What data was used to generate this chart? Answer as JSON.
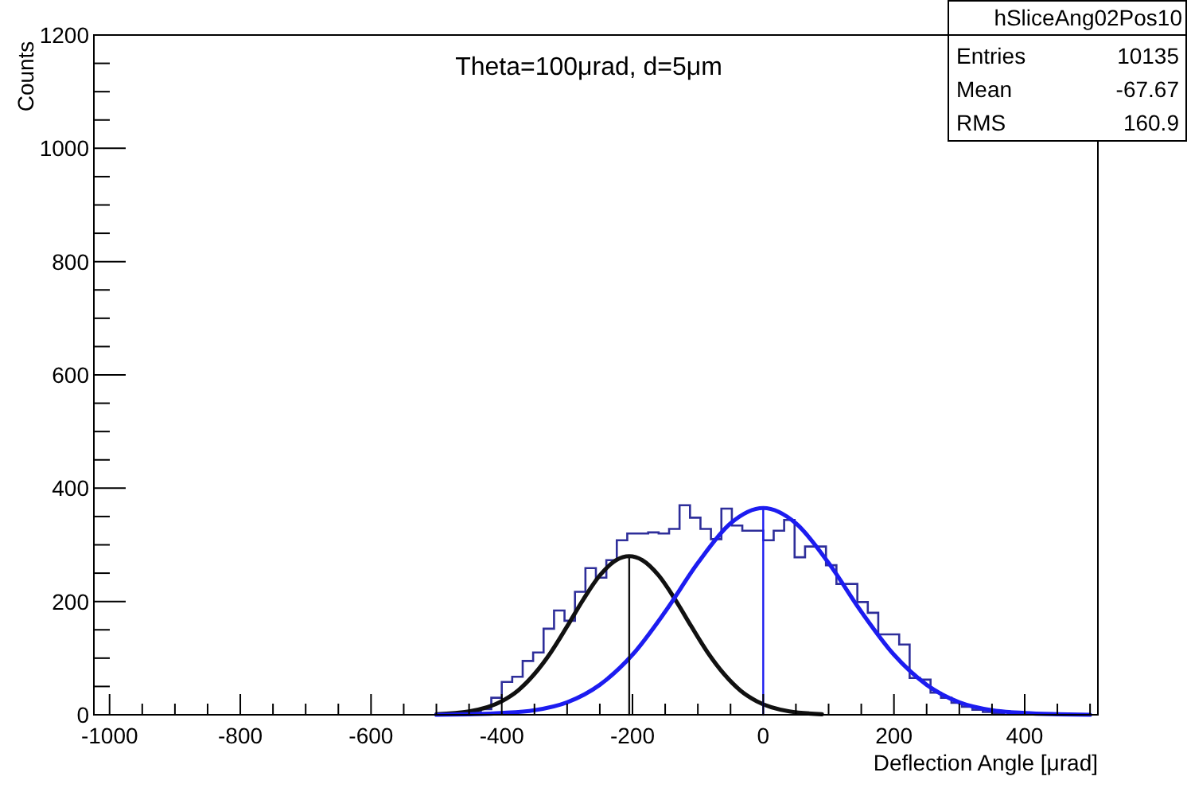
{
  "chart_data": {
    "type": "histogram",
    "title": "Theta=100μrad, d=5μm",
    "xlabel": "Deflection Angle [μrad]",
    "ylabel": "Counts",
    "annotations": [
      "hSliceAng02Pos10",
      "Entries",
      "10135",
      "Mean",
      "-67.67",
      "RMS",
      "160.9"
    ],
    "bins": [
      -464,
      -448,
      -432,
      -416,
      -400,
      -384,
      -368,
      -352,
      -336,
      -320,
      -304,
      -288,
      -272,
      -256,
      -240,
      -224,
      -208,
      -192,
      -176,
      -160,
      -144,
      -128,
      -112,
      -96,
      -80,
      -64,
      -48,
      -32,
      -16,
      0,
      16,
      32,
      48,
      64,
      80,
      96,
      112,
      128,
      144,
      160,
      176,
      192,
      208,
      224,
      240,
      256,
      272,
      288,
      304,
      320,
      336,
      352,
      368
    ],
    "series": [
      {
        "color": "#2e2e9a",
        "values": [
          2,
          5,
          10,
          30,
          58,
          67,
          95,
          110,
          152,
          184,
          166,
          217,
          259,
          242,
          273,
          308,
          320,
          320,
          322,
          320,
          328,
          370,
          348,
          328,
          310,
          364,
          334,
          325,
          325,
          308,
          325,
          344,
          278,
          297,
          297,
          264,
          231,
          231,
          199,
          180,
          142,
          142,
          124,
          65,
          62,
          39,
          30,
          21,
          14,
          9,
          5,
          3
        ]
      },
      {
        "type": "line",
        "color": "#111111",
        "x": [
          -500,
          -450,
          -400,
          -375,
          -350,
          -325,
          -300,
          -275,
          -250,
          -225,
          -205,
          -185,
          -160,
          -135,
          -110,
          -85,
          -60,
          -35,
          -10,
          40,
          90
        ],
        "values": [
          1,
          6,
          24,
          43,
          72,
          110,
          156,
          204,
          246,
          273,
          280,
          273,
          246,
          204,
          156,
          110,
          72,
          43,
          24,
          6,
          1
        ]
      },
      {
        "type": "line",
        "color": "#1c1cf0",
        "x": [
          -500,
          -450,
          -400,
          -350,
          -300,
          -250,
          -200,
          -150,
          -100,
          -50,
          0,
          50,
          100,
          150,
          200,
          250,
          300,
          350,
          400,
          450,
          500
        ],
        "values": [
          0,
          1,
          3,
          8,
          22,
          53,
          106,
          182,
          268,
          338,
          365,
          338,
          268,
          182,
          106,
          53,
          22,
          8,
          3,
          1,
          0
        ]
      },
      {
        "type": "line",
        "color": "#111111",
        "x": [
          -205,
          -205
        ],
        "values": [
          0,
          280
        ]
      },
      {
        "type": "line",
        "color": "#1c1cf0",
        "x": [
          0,
          0
        ],
        "values": [
          0,
          365
        ]
      }
    ],
    "xlim": [
      -1024,
      512
    ],
    "ylim": [
      0,
      1200
    ],
    "xticks": [
      -1000,
      {
        "value": -950,
        "label": null
      },
      {
        "value": -900,
        "label": null
      },
      {
        "value": -850,
        "label": null
      },
      -800,
      {
        "value": -750,
        "label": null
      },
      {
        "value": -700,
        "label": null
      },
      {
        "value": -650,
        "label": null
      },
      -600,
      {
        "value": -550,
        "label": null
      },
      {
        "value": -500,
        "label": null
      },
      {
        "value": -450,
        "label": null
      },
      -400,
      {
        "value": -350,
        "label": null
      },
      {
        "value": -300,
        "label": null
      },
      {
        "value": -250,
        "label": null
      },
      -200,
      {
        "value": -150,
        "label": null
      },
      {
        "value": -100,
        "label": null
      },
      {
        "value": -50,
        "label": null
      },
      0,
      {
        "value": 50,
        "label": null
      },
      {
        "value": 100,
        "label": null
      },
      {
        "value": 150,
        "label": null
      },
      200,
      {
        "value": 250,
        "label": null
      },
      {
        "value": 300,
        "label": null
      },
      {
        "value": 350,
        "label": null
      },
      400,
      {
        "value": 450,
        "label": null
      },
      {
        "value": 500,
        "label": null
      }
    ],
    "yticks": [
      0,
      {
        "value": 50,
        "label": null
      },
      {
        "value": 100,
        "label": null
      },
      {
        "value": 150,
        "label": null
      },
      200,
      {
        "value": 250,
        "label": null
      },
      {
        "value": 300,
        "label": null
      },
      {
        "value": 350,
        "label": null
      },
      400,
      {
        "value": 450,
        "label": null
      },
      {
        "value": 500,
        "label": null
      },
      {
        "value": 550,
        "label": null
      },
      600,
      {
        "value": 650,
        "label": null
      },
      {
        "value": 700,
        "label": null
      },
      {
        "value": 750,
        "label": null
      },
      800,
      {
        "value": 850,
        "label": null
      },
      {
        "value": 900,
        "label": null
      },
      {
        "value": 950,
        "label": null
      },
      1000,
      {
        "value": 1050,
        "label": null
      },
      {
        "value": 1100,
        "label": null
      },
      {
        "value": 1150,
        "label": null
      },
      1200
    ],
    "grid": false
  }
}
